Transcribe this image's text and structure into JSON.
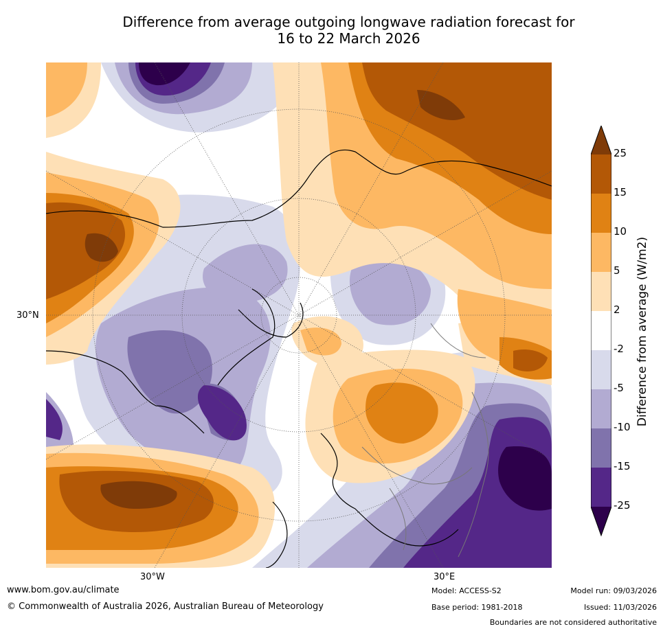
{
  "title_line1": "Difference from average outgoing longwave radiation forecast for",
  "title_line2": "16 to 22 March 2026",
  "map_labels": {
    "lat_30n": "30°N",
    "lon_30w": "30°W",
    "lon_30e": "30°E"
  },
  "colorbar": {
    "label": "Difference from average (W/m2)",
    "ticks": [
      "25",
      "15",
      "10",
      "5",
      "2",
      "-2",
      "-5",
      "-10",
      "-15",
      "-25"
    ],
    "colors": [
      "#7f3b08",
      "#b35806",
      "#e08214",
      "#fdb863",
      "#fee0b6",
      "#ffffff",
      "#d8daeb",
      "#b2abd2",
      "#8073ac",
      "#542788",
      "#2d004b"
    ]
  },
  "footer": {
    "website": "www.bom.gov.au/climate",
    "copyright": "© Commonwealth of Australia 2026, Australian Bureau of Meteorology",
    "model": "Model: ACCESS-S2",
    "base_period": "Base period: 1981-2018",
    "model_run": "Model run: 09/03/2026",
    "issued": "Issued: 11/03/2026",
    "disclaimer": "Boundaries are not considered authoritative"
  }
}
